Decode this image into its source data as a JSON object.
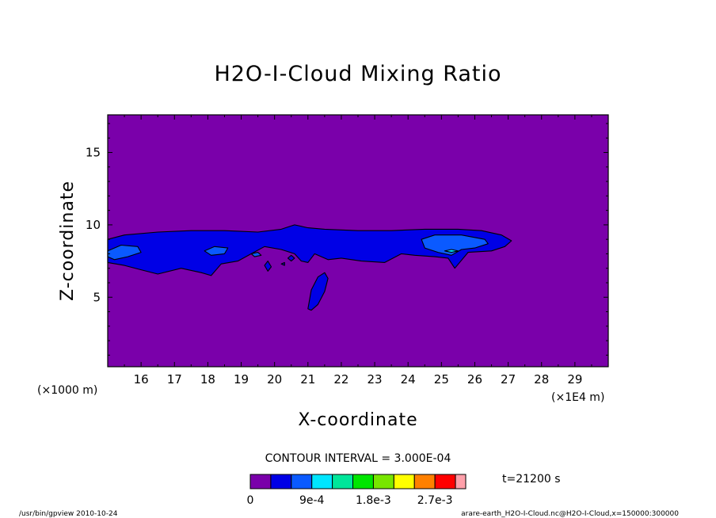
{
  "chart_data": {
    "type": "heatmap",
    "title": "H2O-I-Cloud Mixing Ratio",
    "xlabel": "X-coordinate",
    "ylabel": "Z-coordinate",
    "x_unit_label": "(×1000 m)",
    "x_scale_label": "(×1E4 m)",
    "x_ticks": [
      "16",
      "17",
      "18",
      "19",
      "20",
      "21",
      "22",
      "23",
      "24",
      "25",
      "26",
      "27",
      "28",
      "29"
    ],
    "x_tick_values": [
      16,
      17,
      18,
      19,
      20,
      21,
      22,
      23,
      24,
      25,
      26,
      27,
      28,
      29
    ],
    "y_ticks": [
      "5",
      "10",
      "15"
    ],
    "y_tick_values": [
      5,
      10,
      15
    ],
    "xlim": [
      15,
      30
    ],
    "ylim": [
      0.2,
      17.6
    ],
    "contour_interval_label": "CONTOUR INTERVAL = 3.000E-04",
    "time_label": "t=21200 s",
    "levels": [
      0,
      0.0003,
      0.0006,
      0.0009,
      0.0012,
      0.0015,
      0.0018,
      0.0021,
      0.0024,
      0.0027,
      0.003
    ],
    "colorbar_labels": [
      {
        "text": "0",
        "index": 0
      },
      {
        "text": "9e-4",
        "index": 3
      },
      {
        "text": "1.8e-3",
        "index": 6
      },
      {
        "text": "2.7e-3",
        "index": 9
      }
    ],
    "colors": [
      "#7a00aa",
      "#0000e6",
      "#0a5aff",
      "#00e6ff",
      "#00e69a",
      "#00e600",
      "#78e600",
      "#ffff00",
      "#ff8000",
      "#ff0000",
      "#ffa0aa"
    ],
    "regions": [
      {
        "level": 1,
        "points": [
          [
            15,
            9.0
          ],
          [
            15.5,
            9.3
          ],
          [
            16.5,
            9.5
          ],
          [
            17.5,
            9.6
          ],
          [
            18.5,
            9.6
          ],
          [
            19.5,
            9.5
          ],
          [
            20.2,
            9.7
          ],
          [
            20.6,
            10.0
          ],
          [
            21.0,
            9.8
          ],
          [
            21.5,
            9.7
          ],
          [
            22.5,
            9.6
          ],
          [
            23.5,
            9.6
          ],
          [
            24.5,
            9.7
          ],
          [
            25.5,
            9.7
          ],
          [
            26.2,
            9.6
          ],
          [
            26.8,
            9.3
          ],
          [
            27.1,
            8.9
          ],
          [
            26.9,
            8.5
          ],
          [
            26.5,
            8.2
          ],
          [
            25.8,
            8.1
          ],
          [
            25.4,
            7.0
          ],
          [
            25.2,
            7.7
          ],
          [
            24.8,
            7.8
          ],
          [
            24.2,
            7.9
          ],
          [
            23.8,
            8.0
          ],
          [
            23.3,
            7.4
          ],
          [
            22.6,
            7.5
          ],
          [
            22.0,
            7.7
          ],
          [
            21.6,
            7.6
          ],
          [
            21.2,
            8.0
          ],
          [
            21.0,
            7.4
          ],
          [
            20.8,
            7.5
          ],
          [
            20.6,
            8.0
          ],
          [
            20.2,
            8.3
          ],
          [
            19.7,
            8.5
          ],
          [
            19.3,
            8.0
          ],
          [
            18.9,
            7.5
          ],
          [
            18.4,
            7.3
          ],
          [
            18.1,
            6.5
          ],
          [
            17.8,
            6.7
          ],
          [
            17.2,
            7.0
          ],
          [
            16.5,
            6.6
          ],
          [
            16.0,
            6.9
          ],
          [
            15.5,
            7.2
          ],
          [
            15,
            7.4
          ]
        ]
      },
      {
        "level": 2,
        "points": [
          [
            15,
            8.2
          ],
          [
            15.4,
            8.6
          ],
          [
            15.9,
            8.5
          ],
          [
            16.0,
            8.1
          ],
          [
            15.6,
            7.8
          ],
          [
            15.2,
            7.6
          ],
          [
            15,
            7.8
          ]
        ]
      },
      {
        "level": 1,
        "points": [
          [
            21.0,
            4.2
          ],
          [
            21.1,
            5.5
          ],
          [
            21.3,
            6.4
          ],
          [
            21.5,
            6.7
          ],
          [
            21.6,
            6.3
          ],
          [
            21.5,
            5.4
          ],
          [
            21.3,
            4.5
          ],
          [
            21.1,
            4.1
          ]
        ]
      },
      {
        "level": 2,
        "points": [
          [
            24.4,
            9.0
          ],
          [
            24.8,
            9.3
          ],
          [
            25.6,
            9.3
          ],
          [
            26.3,
            9.0
          ],
          [
            26.4,
            8.7
          ],
          [
            26.0,
            8.4
          ],
          [
            25.6,
            8.3
          ],
          [
            25.3,
            7.9
          ],
          [
            24.9,
            8.1
          ],
          [
            24.5,
            8.4
          ]
        ]
      },
      {
        "level": 3,
        "points": [
          [
            25.1,
            8.2
          ],
          [
            25.3,
            8.3
          ],
          [
            25.5,
            8.2
          ],
          [
            25.3,
            8.1
          ]
        ]
      },
      {
        "level": 2,
        "points": [
          [
            17.9,
            8.2
          ],
          [
            18.2,
            8.5
          ],
          [
            18.6,
            8.4
          ],
          [
            18.5,
            8.0
          ],
          [
            18.1,
            7.9
          ]
        ]
      },
      {
        "level": 2,
        "points": [
          [
            19.3,
            8.0
          ],
          [
            19.5,
            8.1
          ],
          [
            19.6,
            7.9
          ],
          [
            19.4,
            7.8
          ]
        ]
      },
      {
        "level": 1,
        "points": [
          [
            19.7,
            7.2
          ],
          [
            19.8,
            7.5
          ],
          [
            19.9,
            7.1
          ],
          [
            19.8,
            6.8
          ]
        ]
      },
      {
        "level": 1,
        "points": [
          [
            20.4,
            7.7
          ],
          [
            20.5,
            7.9
          ],
          [
            20.6,
            7.7
          ],
          [
            20.5,
            7.5
          ]
        ]
      },
      {
        "level": 1,
        "points": [
          [
            20.2,
            7.3
          ],
          [
            20.3,
            7.4
          ],
          [
            20.3,
            7.2
          ]
        ]
      }
    ]
  },
  "footer": {
    "left": "/usr/bin/gpview  2010-10-24",
    "right": "arare-earth_H2O-I-Cloud.nc@H2O-I-Cloud,x=150000:300000"
  }
}
